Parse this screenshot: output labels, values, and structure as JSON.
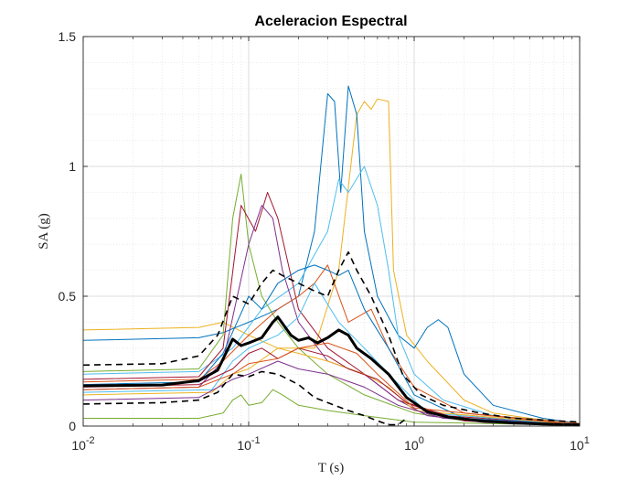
{
  "chart_data": {
    "type": "line",
    "title": "Aceleracion Espectral",
    "xlabel": "T (s)",
    "ylabel": "SA (g)",
    "xscale": "log",
    "xlim": [
      0.01,
      10
    ],
    "ylim": [
      0,
      1.5
    ],
    "grid": true,
    "minor_grid": true,
    "x_ticks": [
      {
        "value": 0.01,
        "base": "10",
        "exp": "-2"
      },
      {
        "value": 0.1,
        "base": "10",
        "exp": "-1"
      },
      {
        "value": 1,
        "base": "10",
        "exp": "0"
      },
      {
        "value": 10,
        "base": "10",
        "exp": "1"
      }
    ],
    "y_ticks": [
      {
        "value": 0,
        "label": "0"
      },
      {
        "value": 0.5,
        "label": "0.5"
      },
      {
        "value": 1,
        "label": "1"
      },
      {
        "value": 1.5,
        "label": "1.5"
      }
    ],
    "series": [
      {
        "style": "median",
        "color": "#000000",
        "width": 3,
        "dash": "",
        "x": [
          0.01,
          0.03,
          0.05,
          0.065,
          0.08,
          0.09,
          0.1,
          0.12,
          0.14,
          0.15,
          0.18,
          0.2,
          0.23,
          0.26,
          0.3,
          0.35,
          0.4,
          0.45,
          0.55,
          0.7,
          0.9,
          1.2,
          1.6,
          2.5,
          4,
          6,
          10
        ],
        "y": [
          0.155,
          0.158,
          0.175,
          0.215,
          0.335,
          0.31,
          0.32,
          0.34,
          0.4,
          0.42,
          0.35,
          0.33,
          0.34,
          0.32,
          0.34,
          0.37,
          0.35,
          0.3,
          0.26,
          0.2,
          0.11,
          0.055,
          0.035,
          0.02,
          0.012,
          0.008,
          0.005
        ]
      },
      {
        "style": "upper",
        "color": "#000000",
        "width": 1.6,
        "dash": "7,5",
        "x": [
          0.01,
          0.03,
          0.05,
          0.065,
          0.08,
          0.1,
          0.12,
          0.14,
          0.16,
          0.2,
          0.25,
          0.3,
          0.35,
          0.4,
          0.45,
          0.55,
          0.7,
          0.85,
          1.1,
          1.5,
          2.5,
          4,
          10
        ],
        "y": [
          0.235,
          0.24,
          0.27,
          0.35,
          0.5,
          0.47,
          0.55,
          0.6,
          0.58,
          0.55,
          0.52,
          0.5,
          0.6,
          0.67,
          0.6,
          0.5,
          0.35,
          0.2,
          0.12,
          0.08,
          0.05,
          0.03,
          0.015
        ]
      },
      {
        "style": "lower",
        "color": "#000000",
        "width": 1.6,
        "dash": "7,5",
        "x": [
          0.01,
          0.03,
          0.05,
          0.065,
          0.08,
          0.1,
          0.12,
          0.15,
          0.2,
          0.25,
          0.3,
          0.4,
          0.5,
          0.6,
          0.7,
          0.8,
          0.9
        ],
        "y": [
          0.085,
          0.09,
          0.1,
          0.13,
          0.2,
          0.19,
          0.21,
          0.2,
          0.16,
          0.11,
          0.09,
          0.06,
          0.04,
          0.02,
          0.005,
          0.005,
          0.03
        ]
      },
      {
        "color": "#EDB120",
        "width": 1,
        "dash": "",
        "x": [
          0.01,
          0.05,
          0.07,
          0.1,
          0.15,
          0.25,
          0.35,
          0.45,
          0.5,
          0.55,
          0.6,
          0.7,
          0.75,
          0.9,
          1.2,
          2,
          3,
          5,
          10
        ],
        "y": [
          0.37,
          0.38,
          0.4,
          0.35,
          0.3,
          0.3,
          0.6,
          1.2,
          1.25,
          1.22,
          1.26,
          1.25,
          0.6,
          0.35,
          0.25,
          0.1,
          0.05,
          0.03,
          0.01
        ]
      },
      {
        "color": "#0072BD",
        "width": 1,
        "dash": "",
        "x": [
          0.01,
          0.05,
          0.07,
          0.1,
          0.15,
          0.2,
          0.25,
          0.3,
          0.33,
          0.36,
          0.4,
          0.45,
          0.5,
          0.6,
          0.8,
          1,
          1.2,
          1.4,
          1.6,
          2,
          3,
          6,
          10
        ],
        "y": [
          0.33,
          0.34,
          0.36,
          0.4,
          0.45,
          0.5,
          0.75,
          1.28,
          1.25,
          0.9,
          1.31,
          1.2,
          0.75,
          0.5,
          0.35,
          0.3,
          0.38,
          0.41,
          0.38,
          0.2,
          0.08,
          0.03,
          0.01
        ]
      },
      {
        "color": "#4DBEEE",
        "width": 1,
        "dash": "",
        "x": [
          0.01,
          0.05,
          0.08,
          0.12,
          0.2,
          0.3,
          0.35,
          0.4,
          0.5,
          0.6,
          0.7,
          0.8,
          1,
          1.5,
          3,
          10
        ],
        "y": [
          0.2,
          0.21,
          0.3,
          0.45,
          0.55,
          0.75,
          0.95,
          0.9,
          1.0,
          0.85,
          0.6,
          0.35,
          0.2,
          0.1,
          0.04,
          0.01
        ]
      },
      {
        "color": "#77AC30",
        "width": 1,
        "dash": "",
        "x": [
          0.01,
          0.05,
          0.07,
          0.08,
          0.09,
          0.1,
          0.12,
          0.15,
          0.2,
          0.3,
          0.5,
          1,
          2,
          10
        ],
        "y": [
          0.21,
          0.22,
          0.35,
          0.8,
          0.97,
          0.7,
          0.5,
          0.4,
          0.3,
          0.2,
          0.12,
          0.05,
          0.02,
          0.005
        ]
      },
      {
        "color": "#A2142F",
        "width": 1,
        "dash": "",
        "x": [
          0.01,
          0.05,
          0.07,
          0.09,
          0.11,
          0.13,
          0.15,
          0.2,
          0.3,
          0.5,
          0.8,
          1.5,
          10
        ],
        "y": [
          0.18,
          0.19,
          0.3,
          0.85,
          0.75,
          0.9,
          0.8,
          0.45,
          0.3,
          0.2,
          0.1,
          0.04,
          0.005
        ]
      },
      {
        "color": "#7E2F8E",
        "width": 1,
        "dash": "",
        "x": [
          0.01,
          0.05,
          0.07,
          0.1,
          0.12,
          0.14,
          0.16,
          0.2,
          0.3,
          0.5,
          0.8,
          1.2,
          3,
          10
        ],
        "y": [
          0.14,
          0.15,
          0.25,
          0.7,
          0.85,
          0.8,
          0.6,
          0.4,
          0.25,
          0.2,
          0.1,
          0.04,
          0.01,
          0.005
        ]
      },
      {
        "color": "#D95319",
        "width": 1,
        "dash": "",
        "x": [
          0.01,
          0.05,
          0.07,
          0.1,
          0.15,
          0.2,
          0.25,
          0.3,
          0.4,
          0.55,
          0.7,
          1,
          2,
          10
        ],
        "y": [
          0.17,
          0.18,
          0.25,
          0.35,
          0.45,
          0.5,
          0.55,
          0.62,
          0.4,
          0.45,
          0.3,
          0.15,
          0.05,
          0.01
        ]
      },
      {
        "color": "#0072BD",
        "width": 1,
        "dash": "",
        "x": [
          0.01,
          0.05,
          0.07,
          0.1,
          0.12,
          0.15,
          0.2,
          0.25,
          0.3,
          0.35,
          0.4,
          0.5,
          0.7,
          1,
          2,
          10
        ],
        "y": [
          0.16,
          0.17,
          0.28,
          0.5,
          0.45,
          0.55,
          0.6,
          0.62,
          0.6,
          0.58,
          0.6,
          0.45,
          0.3,
          0.12,
          0.03,
          0.005
        ]
      },
      {
        "color": "#4DBEEE",
        "width": 1,
        "dash": "",
        "x": [
          0.01,
          0.06,
          0.08,
          0.1,
          0.15,
          0.2,
          0.25,
          0.35,
          0.5,
          0.7,
          1.2,
          10
        ],
        "y": [
          0.13,
          0.14,
          0.25,
          0.3,
          0.35,
          0.42,
          0.55,
          0.4,
          0.3,
          0.2,
          0.05,
          0.005
        ]
      },
      {
        "color": "#EDB120",
        "width": 1,
        "dash": "",
        "x": [
          0.01,
          0.06,
          0.08,
          0.1,
          0.15,
          0.2,
          0.3,
          0.5,
          0.7,
          1,
          10
        ],
        "y": [
          0.12,
          0.13,
          0.2,
          0.22,
          0.3,
          0.28,
          0.25,
          0.2,
          0.15,
          0.06,
          0.005
        ]
      },
      {
        "color": "#77AC30",
        "width": 1,
        "dash": "",
        "x": [
          0.01,
          0.05,
          0.07,
          0.08,
          0.09,
          0.1,
          0.12,
          0.14,
          0.16,
          0.2,
          0.3,
          0.5,
          1,
          10
        ],
        "y": [
          0.03,
          0.03,
          0.05,
          0.1,
          0.12,
          0.08,
          0.09,
          0.14,
          0.12,
          0.08,
          0.06,
          0.04,
          0.015,
          0.003
        ]
      },
      {
        "color": "#7E2F8E",
        "width": 1,
        "dash": "",
        "x": [
          0.01,
          0.05,
          0.08,
          0.1,
          0.15,
          0.2,
          0.3,
          0.5,
          0.8,
          1.5,
          10
        ],
        "y": [
          0.1,
          0.11,
          0.18,
          0.2,
          0.25,
          0.22,
          0.2,
          0.15,
          0.08,
          0.03,
          0.004
        ]
      },
      {
        "color": "#A2142F",
        "width": 1,
        "dash": "",
        "x": [
          0.01,
          0.05,
          0.08,
          0.1,
          0.12,
          0.15,
          0.2,
          0.3,
          0.4,
          0.6,
          0.9,
          2,
          10
        ],
        "y": [
          0.15,
          0.16,
          0.22,
          0.28,
          0.3,
          0.26,
          0.3,
          0.27,
          0.22,
          0.18,
          0.09,
          0.02,
          0.004
        ]
      },
      {
        "color": "#D95319",
        "width": 1,
        "dash": "",
        "x": [
          0.01,
          0.05,
          0.08,
          0.1,
          0.15,
          0.2,
          0.3,
          0.45,
          0.6,
          1,
          10
        ],
        "y": [
          0.14,
          0.15,
          0.2,
          0.24,
          0.26,
          0.3,
          0.32,
          0.28,
          0.2,
          0.07,
          0.004
        ]
      }
    ]
  }
}
